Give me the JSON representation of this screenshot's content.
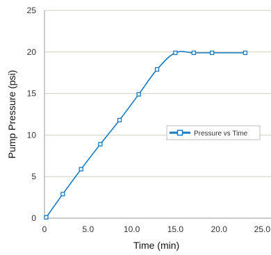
{
  "colors": {
    "series": "#1479c2",
    "grid": "#cfcfc0",
    "frame": "#9a9a9a"
  },
  "chart_data": {
    "type": "line",
    "title": "",
    "xlabel": "Time (min)",
    "ylabel": "Pump Pressure (psi)",
    "xlim": [
      0,
      25
    ],
    "ylim": [
      0,
      25
    ],
    "x_ticks": [
      "0",
      "5.0",
      "10.0",
      "15.0",
      "20.0",
      "25.0"
    ],
    "y_ticks": [
      "0",
      "5",
      "10",
      "15",
      "20",
      "25"
    ],
    "grid": "horizontal",
    "legend_position": "center-right",
    "series": [
      {
        "name": "Pressure vs Time",
        "marker": "open-square",
        "x": [
          0.2,
          2.1,
          4.2,
          6.4,
          8.6,
          10.8,
          12.9,
          15.0,
          17.1,
          19.2,
          23.0
        ],
        "y": [
          0.1,
          2.9,
          5.9,
          8.9,
          11.8,
          14.9,
          17.9,
          19.9,
          19.9,
          19.9,
          19.9
        ]
      }
    ]
  }
}
